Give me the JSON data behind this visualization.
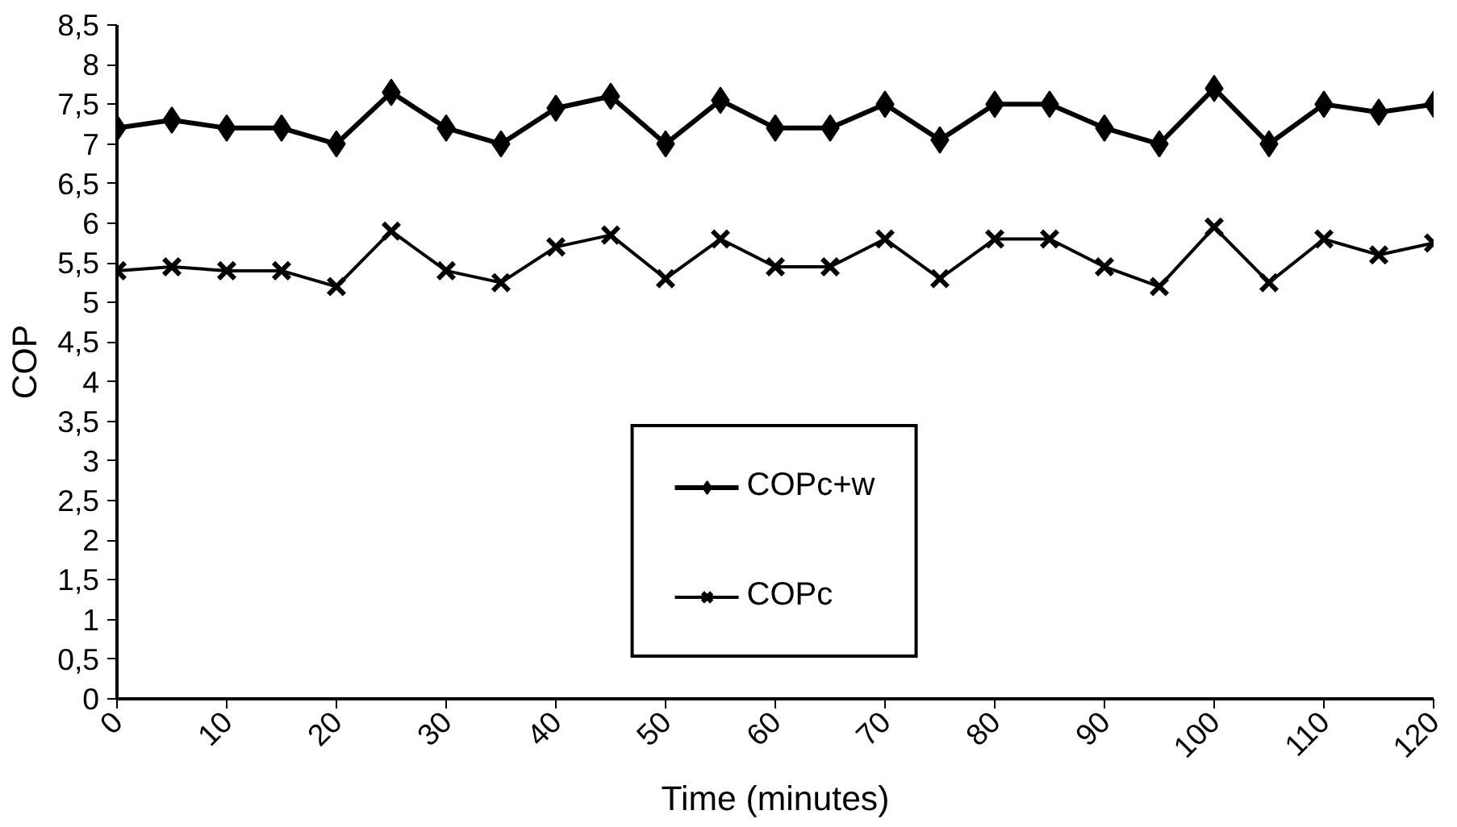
{
  "chart_data": {
    "type": "line",
    "xlabel": "Time (minutes)",
    "ylabel": "COP",
    "x": [
      0,
      5,
      10,
      15,
      20,
      25,
      30,
      35,
      40,
      45,
      50,
      55,
      60,
      65,
      70,
      75,
      80,
      85,
      90,
      95,
      100,
      105,
      110,
      115,
      120
    ],
    "series": [
      {
        "name": "COPc+w",
        "color": "#000000",
        "marker": "diamond",
        "values": [
          7.2,
          7.3,
          7.2,
          7.2,
          7.0,
          7.65,
          7.2,
          7.0,
          7.45,
          7.6,
          7.0,
          7.55,
          7.2,
          7.2,
          7.5,
          7.05,
          7.5,
          7.5,
          7.2,
          7.0,
          7.7,
          7.0,
          7.5,
          7.4,
          7.5
        ]
      },
      {
        "name": "COPc",
        "color": "#000000",
        "marker": "cross",
        "values": [
          5.4,
          5.45,
          5.4,
          5.4,
          5.2,
          5.9,
          5.4,
          5.25,
          5.7,
          5.85,
          5.3,
          5.8,
          5.45,
          5.45,
          5.8,
          5.3,
          5.8,
          5.8,
          5.45,
          5.2,
          5.95,
          5.25,
          5.8,
          5.6,
          5.75
        ]
      }
    ],
    "xlim": [
      0,
      120
    ],
    "xticks": [
      0,
      10,
      20,
      30,
      40,
      50,
      60,
      70,
      80,
      90,
      100,
      110,
      120
    ],
    "ylim": [
      0,
      8.5
    ],
    "yticks": [
      0,
      {
        "value": 0.5,
        "label": "0,5"
      },
      1,
      {
        "value": 1.5,
        "label": "1,5"
      },
      2,
      {
        "value": 2.5,
        "label": "2,5"
      },
      3,
      {
        "value": 3.5,
        "label": "3,5"
      },
      4,
      {
        "value": 4.5,
        "label": "4,5"
      },
      5,
      {
        "value": 5.5,
        "label": "5,5"
      },
      6,
      {
        "value": 6.5,
        "label": "6,5"
      },
      7,
      {
        "value": 7.5,
        "label": "7,5"
      },
      8,
      {
        "value": 8.5,
        "label": "8,5"
      }
    ],
    "grid": false,
    "legend": "bottom",
    "line_style": "solid"
  }
}
